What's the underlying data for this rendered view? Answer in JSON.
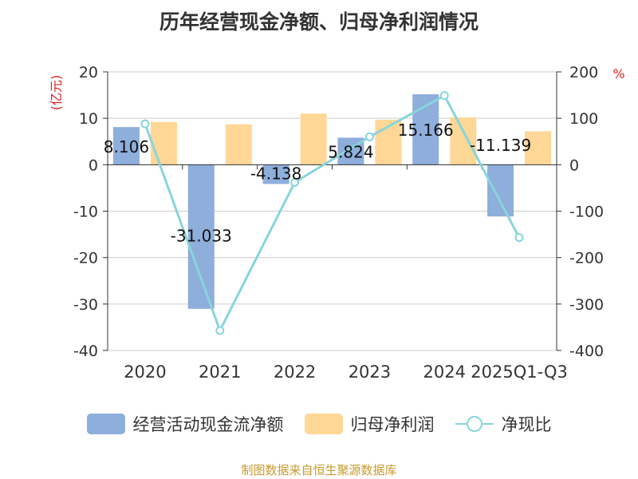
{
  "chart_data": {
    "type": "bar",
    "title": "历年经营现金净额、归母净利润情况",
    "categories": [
      "2020",
      "2021",
      "2022",
      "2023",
      "2024",
      "2025Q1-Q3"
    ],
    "series": [
      {
        "name": "经营活动现金流净额",
        "axis": "left",
        "kind": "bar",
        "values": [
          8.106,
          -31.033,
          -4.138,
          5.824,
          15.166,
          -11.139
        ],
        "labels": [
          "8.106",
          "-31.033",
          "-4.138",
          "5.824",
          "15.166",
          "-11.139"
        ]
      },
      {
        "name": "归母净利润",
        "axis": "left",
        "kind": "bar",
        "values": [
          9.2,
          8.7,
          11.0,
          9.7,
          10.2,
          7.2
        ]
      },
      {
        "name": "净现比",
        "axis": "right",
        "kind": "line",
        "values": [
          88,
          -357,
          -38,
          60,
          149,
          -157
        ]
      }
    ],
    "left_axis": {
      "label": "(亿元)",
      "min": -40,
      "max": 20,
      "ticks": [
        20,
        10,
        0,
        -10,
        -20,
        -30,
        -40
      ]
    },
    "right_axis": {
      "label": "%",
      "min": -400,
      "max": 200,
      "ticks": [
        200,
        100,
        0,
        -100,
        -200,
        -300,
        -400
      ]
    },
    "colors": {
      "bar1": "#8eaedc",
      "bar2": "#ffd796",
      "line": "#88d5db",
      "axis_label": "#e02020"
    },
    "source": "制图数据来自恒生聚源数据库"
  }
}
